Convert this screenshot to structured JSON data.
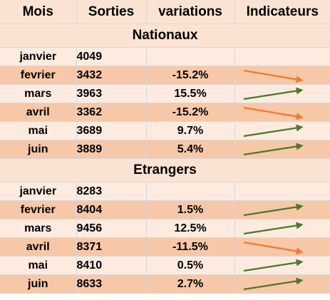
{
  "headers": {
    "mois": "Mois",
    "sorties": "Sorties",
    "variations": "variations",
    "indicateurs": "Indicateurs"
  },
  "colors": {
    "up_arrow": "#4c7a2d",
    "down_arrow": "#f07b2d",
    "row_light": "#fdebe0",
    "row_dark": "#f7c8a7",
    "header_bg": "#fbe3d3"
  },
  "sections": [
    {
      "title": "Nationaux",
      "rows": [
        {
          "mois": "janvier",
          "sorties": "4049",
          "variation": "",
          "indicator": "none"
        },
        {
          "mois": "fevrier",
          "sorties": "3432",
          "variation": "-15.2%",
          "indicator": "down-arrow-icon"
        },
        {
          "mois": "mars",
          "sorties": "3963",
          "variation": "15.5%",
          "indicator": "up-arrow-icon"
        },
        {
          "mois": "avril",
          "sorties": "3362",
          "variation": "-15.2%",
          "indicator": "down-arrow-icon"
        },
        {
          "mois": "mai",
          "sorties": "3689",
          "variation": "9.7%",
          "indicator": "up-arrow-icon"
        },
        {
          "mois": "juin",
          "sorties": "3889",
          "variation": "5.4%",
          "indicator": "up-arrow-icon"
        }
      ]
    },
    {
      "title": "Etrangers",
      "rows": [
        {
          "mois": "janvier",
          "sorties": "8283",
          "variation": "",
          "indicator": "none"
        },
        {
          "mois": "fevrier",
          "sorties": "8404",
          "variation": "1.5%",
          "indicator": "up-arrow-icon"
        },
        {
          "mois": "mars",
          "sorties": "9456",
          "variation": "12.5%",
          "indicator": "up-arrow-icon"
        },
        {
          "mois": "avril",
          "sorties": "8371",
          "variation": "-11.5%",
          "indicator": "down-arrow-icon"
        },
        {
          "mois": "mai",
          "sorties": "8410",
          "variation": "0.5%",
          "indicator": "up-arrow-icon"
        },
        {
          "mois": "juin",
          "sorties": "8633",
          "variation": "2.7%",
          "indicator": "up-arrow-icon"
        }
      ]
    }
  ]
}
